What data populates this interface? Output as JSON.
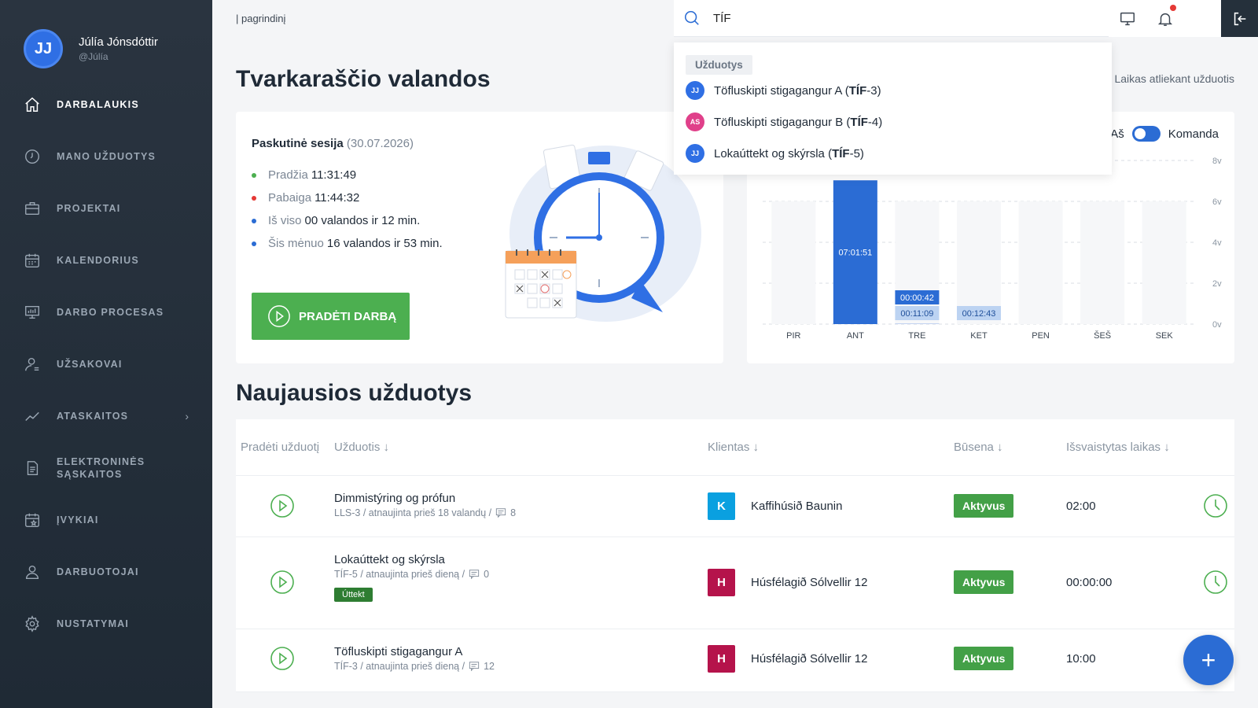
{
  "user": {
    "initials": "JJ",
    "name": "Júlía Jónsdóttir",
    "handle": "@Júlía"
  },
  "sidebar": {
    "items": [
      {
        "label": "DARBALAUKIS",
        "icon": "home-icon"
      },
      {
        "label": "MANO UŽDUOTYS",
        "icon": "clock-icon"
      },
      {
        "label": "PROJEKTAI",
        "icon": "briefcase-icon"
      },
      {
        "label": "KALENDORIUS",
        "icon": "calendar-icon"
      },
      {
        "label": "DARBO PROCESAS",
        "icon": "board-icon"
      },
      {
        "label": "UŽSAKOVAI",
        "icon": "client-icon"
      },
      {
        "label": "ATASKAITOS",
        "icon": "chart-line-icon"
      },
      {
        "label": "ELEKTRONINĖS\nSĄSKAITOS",
        "icon": "invoice-icon"
      },
      {
        "label": "ĮVYKIAI",
        "icon": "event-icon"
      },
      {
        "label": "DARBUOTOJAI",
        "icon": "users-icon"
      },
      {
        "label": "NUSTATYMAI",
        "icon": "gear-icon"
      }
    ]
  },
  "breadcrumb": "| pagrindinį",
  "search": {
    "value": "TÍF"
  },
  "dropdown": {
    "heading": "Užduotys",
    "items": [
      {
        "avatar": "JJ",
        "avatar_color": "#2f6fe4",
        "prefix": "Töfluskipti stigagangur A (",
        "code": "TÍF",
        "suffix": "-3)"
      },
      {
        "avatar": "AS",
        "avatar_color": "#e0408a",
        "prefix": "Töfluskipti stigagangur B (",
        "code": "TÍF",
        "suffix": "-4)"
      },
      {
        "avatar": "JJ",
        "avatar_color": "#2f6fe4",
        "prefix": "Lokaúttekt og skýrsla (",
        "code": "TÍF",
        "suffix": "-5)"
      }
    ]
  },
  "page_title": "Tvarkaraščio valandos",
  "side_hint": "Laikas atliekant užduotis",
  "session": {
    "title": "Paskutinė sesija",
    "date": "(30.07.2026)",
    "rows": [
      {
        "label": "Pradžia",
        "value": "11:31:49",
        "color": "#4caf50"
      },
      {
        "label": "Pabaiga",
        "value": "11:44:32",
        "color": "#e53935"
      },
      {
        "label": "Iš viso",
        "value": "00 valandos ir 12 min.",
        "color": "#2b6cd4"
      },
      {
        "label": "Šis mėnuo",
        "value": "16 valandos ir 53 min.",
        "color": "#2b6cd4"
      }
    ],
    "button": "PRADĖTI DARBĄ"
  },
  "toggle": {
    "left": "Aš",
    "right": "Komanda"
  },
  "chart_data": {
    "type": "bar",
    "categories": [
      "PIR",
      "ANT",
      "TRE",
      "KET",
      "PEN",
      "ŠEŠ",
      "SEK"
    ],
    "series": [
      {
        "values": [
          0,
          7.03,
          0.01,
          0,
          0,
          0,
          0
        ],
        "labels": [
          "",
          "07:01:51",
          "00:00:42",
          "",
          "",
          "",
          ""
        ]
      },
      {
        "values": [
          0,
          0,
          0.19,
          0.21,
          0,
          0,
          0
        ],
        "labels": [
          "",
          "",
          "00:11:09",
          "00:12:43",
          "",
          "",
          ""
        ]
      }
    ],
    "y_ticks": [
      "0v",
      "2v",
      "4v",
      "6v",
      "8v"
    ],
    "ylim": [
      0,
      8
    ]
  },
  "section_title": "Naujausios užduotys",
  "table": {
    "headers": [
      "Pradėti užduotį",
      "Užduotis ↓",
      "Klientas ↓",
      "Būsena ↓",
      "Išsvaistytas laikas ↓"
    ],
    "rows": [
      {
        "name": "Dimmistýring og prófun",
        "meta": "LLS-3 / atnaujinta prieš 18 valandų /",
        "comments": "8",
        "tag": "",
        "client_initial": "K",
        "client_color": "#0aa0e0",
        "client": "Kaffihúsið Baunin",
        "status": "Aktyvus",
        "time": "02:00",
        "clock": true
      },
      {
        "name": "Lokaúttekt og skýrsla",
        "meta": "TÍF-5 / atnaujinta prieš dieną /",
        "comments": "0",
        "tag": "Úttekt",
        "client_initial": "H",
        "client_color": "#b5134b",
        "client": "Húsfélagið Sólvellir 12",
        "status": "Aktyvus",
        "time": "00:00:00",
        "clock": true
      },
      {
        "name": "Töfluskipti stigagangur A",
        "meta": "TÍF-3 / atnaujinta prieš dieną /",
        "comments": "12",
        "tag": "",
        "client_initial": "H",
        "client_color": "#b5134b",
        "client": "Húsfélagið Sólvellir 12",
        "status": "Aktyvus",
        "time": "10:00",
        "clock": false
      }
    ]
  },
  "fab_label": "+"
}
